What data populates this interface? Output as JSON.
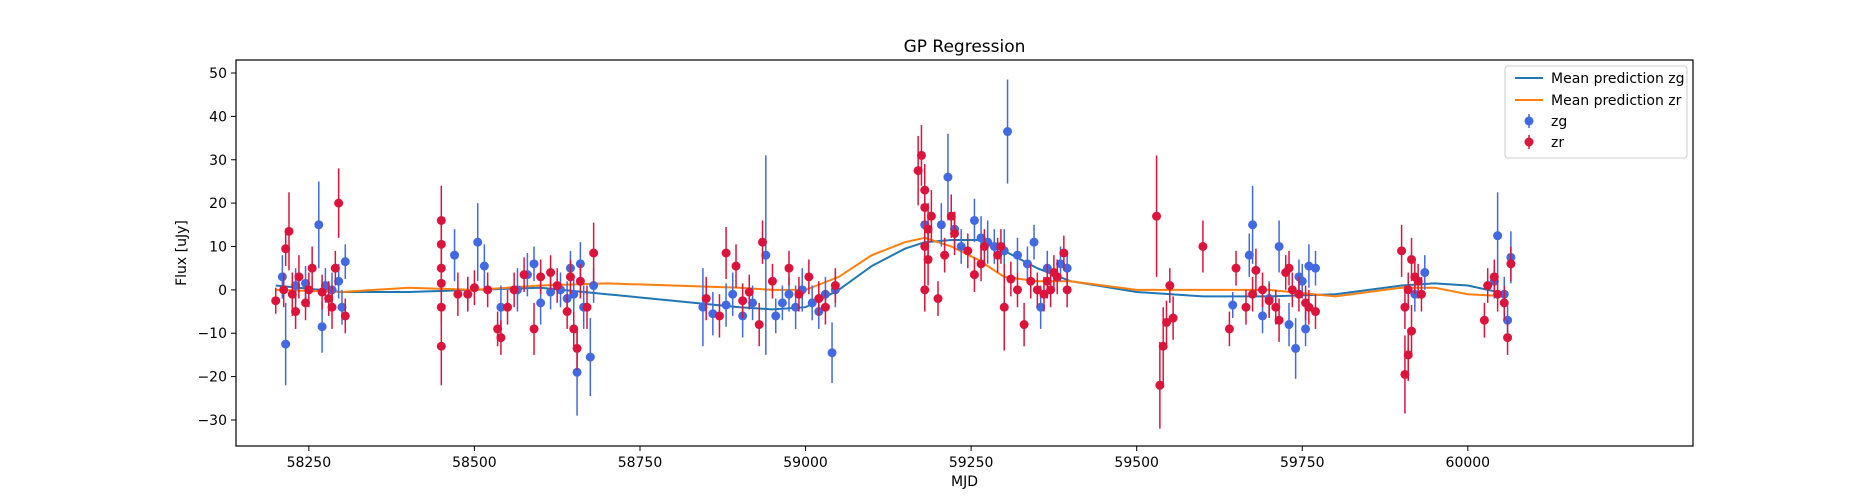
{
  "chart_data": {
    "type": "scatter",
    "title": "GP Regression",
    "xlabel": "MJD",
    "ylabel": "Flux [uJy]",
    "xlim": [
      58140,
      60340
    ],
    "ylim": [
      -36,
      53
    ],
    "xticks": [
      58250,
      58500,
      58750,
      59000,
      59250,
      59500,
      59750,
      60000
    ],
    "yticks": [
      -30,
      -20,
      -10,
      0,
      10,
      20,
      30,
      40,
      50
    ],
    "grid": false,
    "legend_position": "top-right",
    "legend": [
      {
        "label": "Mean prediction zg",
        "kind": "line",
        "color": "#1f77b4"
      },
      {
        "label": "Mean prediction zr",
        "kind": "line",
        "color": "#ff7f0e"
      },
      {
        "label": "zg",
        "kind": "errorbar",
        "color": "#4169e1"
      },
      {
        "label": "zr",
        "kind": "errorbar",
        "color": "#dc143c"
      }
    ],
    "mean_prediction": [
      {
        "name": "Mean prediction zg",
        "color": "#1f77b4",
        "x": [
          58200,
          58300,
          58400,
          58500,
          58600,
          58700,
          58800,
          58900,
          58950,
          59000,
          59050,
          59100,
          59150,
          59180,
          59220,
          59260,
          59300,
          59350,
          59400,
          59500,
          59600,
          59700,
          59800,
          59900,
          59950,
          60000,
          60060
        ],
        "y": [
          1.0,
          -0.5,
          -0.5,
          0.0,
          0.5,
          -1.0,
          -2.5,
          -4.0,
          -4.5,
          -4.0,
          0.0,
          5.5,
          9.5,
          11.0,
          11.5,
          11.5,
          9.0,
          5.0,
          2.0,
          -0.5,
          -1.5,
          -1.5,
          -1.0,
          1.0,
          1.5,
          1.0,
          -1.0
        ]
      },
      {
        "name": "Mean prediction zr",
        "color": "#ff7f0e",
        "x": [
          58200,
          58300,
          58400,
          58500,
          58600,
          58700,
          58800,
          58900,
          58950,
          59000,
          59050,
          59100,
          59150,
          59180,
          59220,
          59260,
          59300,
          59350,
          59400,
          59500,
          59600,
          59700,
          59800,
          59900,
          59950,
          60000,
          60060
        ],
        "y": [
          0.0,
          -0.5,
          0.5,
          0.0,
          1.0,
          1.5,
          1.0,
          0.5,
          0.0,
          0.0,
          3.0,
          8.0,
          11.0,
          12.0,
          10.0,
          7.0,
          3.0,
          2.0,
          2.0,
          0.0,
          0.0,
          0.0,
          -1.5,
          0.5,
          0.5,
          -1.0,
          -1.5
        ]
      }
    ],
    "series": [
      {
        "name": "zg",
        "color": "#4169e1",
        "points": [
          [
            58210,
            3,
            5
          ],
          [
            58215,
            -12.5,
            9.5
          ],
          [
            58230,
            1,
            4
          ],
          [
            58245,
            1.5,
            4
          ],
          [
            58265,
            15,
            10
          ],
          [
            58270,
            -8.5,
            6
          ],
          [
            58275,
            1,
            4
          ],
          [
            58285,
            0,
            4
          ],
          [
            58295,
            2,
            4
          ],
          [
            58300,
            -4,
            4
          ],
          [
            58305,
            6.5,
            4
          ],
          [
            58470,
            8,
            6
          ],
          [
            58490,
            -1,
            4
          ],
          [
            58505,
            11,
            9
          ],
          [
            58515,
            5.5,
            5
          ],
          [
            58540,
            -4,
            5
          ],
          [
            58565,
            0,
            5
          ],
          [
            58580,
            3.5,
            5
          ],
          [
            58590,
            6,
            4
          ],
          [
            58600,
            -3,
            5
          ],
          [
            58615,
            -0.5,
            4
          ],
          [
            58630,
            0,
            4
          ],
          [
            58645,
            5,
            4
          ],
          [
            58655,
            -19,
            10
          ],
          [
            58660,
            6,
            5
          ],
          [
            58665,
            -4,
            5
          ],
          [
            58675,
            -15.5,
            9
          ],
          [
            58680,
            1,
            4
          ],
          [
            58650,
            -1,
            4
          ],
          [
            58640,
            -2,
            4
          ],
          [
            58845,
            -4,
            9
          ],
          [
            58860,
            -5.5,
            5
          ],
          [
            58880,
            -3.5,
            5
          ],
          [
            58890,
            -1,
            5
          ],
          [
            58905,
            -6,
            5
          ],
          [
            58920,
            -3,
            4
          ],
          [
            58940,
            8,
            23
          ],
          [
            58955,
            -6,
            4
          ],
          [
            58965,
            -3,
            4
          ],
          [
            58975,
            -1,
            4
          ],
          [
            58985,
            -4,
            5
          ],
          [
            58995,
            0,
            5
          ],
          [
            59010,
            -3,
            4
          ],
          [
            59020,
            -5,
            4
          ],
          [
            59030,
            -1,
            4
          ],
          [
            59040,
            -14.5,
            7
          ],
          [
            59045,
            0,
            4
          ],
          [
            59180,
            15,
            4
          ],
          [
            59205,
            15,
            5
          ],
          [
            59215,
            26,
            10
          ],
          [
            59225,
            14,
            4
          ],
          [
            59235,
            10,
            4
          ],
          [
            59255,
            16,
            5
          ],
          [
            59265,
            12,
            5
          ],
          [
            59275,
            11,
            5
          ],
          [
            59285,
            10,
            4
          ],
          [
            59300,
            9,
            5
          ],
          [
            59305,
            36.5,
            12
          ],
          [
            59320,
            8,
            4
          ],
          [
            59335,
            6,
            4
          ],
          [
            59345,
            11,
            4
          ],
          [
            59355,
            -4,
            5
          ],
          [
            59365,
            5,
            4
          ],
          [
            59385,
            6,
            4
          ],
          [
            59395,
            5,
            4
          ],
          [
            59645,
            -3.5,
            3
          ],
          [
            59670,
            8,
            5
          ],
          [
            59675,
            15,
            9
          ],
          [
            59690,
            -6,
            4
          ],
          [
            59700,
            -2,
            4
          ],
          [
            59715,
            10,
            6
          ],
          [
            59730,
            -8,
            5
          ],
          [
            59740,
            -13.5,
            7
          ],
          [
            59755,
            -9,
            4
          ],
          [
            59760,
            5.5,
            5
          ],
          [
            59750,
            2,
            4
          ],
          [
            59770,
            5,
            4
          ],
          [
            59745,
            3,
            4
          ],
          [
            59920,
            -1,
            4
          ],
          [
            59935,
            4,
            4
          ],
          [
            60045,
            12.5,
            10
          ],
          [
            60060,
            -7,
            4
          ],
          [
            60065,
            7.5,
            6
          ],
          [
            60040,
            2,
            4
          ],
          [
            60055,
            -1,
            4
          ]
        ]
      },
      {
        "name": "zr",
        "color": "#dc143c",
        "points": [
          [
            58200,
            -2.5,
            3
          ],
          [
            58215,
            9.5,
            4
          ],
          [
            58220,
            13.5,
            9
          ],
          [
            58225,
            -1,
            5
          ],
          [
            58235,
            3,
            5
          ],
          [
            58245,
            -3,
            4
          ],
          [
            58255,
            5,
            5
          ],
          [
            58270,
            -0.5,
            4
          ],
          [
            58280,
            -2,
            4
          ],
          [
            58285,
            -4,
            5
          ],
          [
            58295,
            20,
            8
          ],
          [
            58305,
            -6,
            4
          ],
          [
            58212,
            0,
            4
          ],
          [
            58230,
            -5,
            4
          ],
          [
            58250,
            0,
            4
          ],
          [
            58290,
            5,
            4
          ],
          [
            58450,
            16,
            8
          ],
          [
            58450,
            10.5,
            5
          ],
          [
            58450,
            5,
            5
          ],
          [
            58450,
            1.5,
            5
          ],
          [
            58450,
            -13,
            9
          ],
          [
            58450,
            -4,
            4
          ],
          [
            58475,
            -1,
            5
          ],
          [
            58490,
            -1,
            4
          ],
          [
            58500,
            0.5,
            4
          ],
          [
            58520,
            0,
            4
          ],
          [
            58535,
            -9,
            4
          ],
          [
            58540,
            -11,
            4
          ],
          [
            58550,
            -4,
            4
          ],
          [
            58560,
            0,
            4
          ],
          [
            58575,
            3.5,
            4
          ],
          [
            58590,
            -9,
            6
          ],
          [
            58600,
            3,
            4
          ],
          [
            58615,
            4,
            4
          ],
          [
            58625,
            1,
            4
          ],
          [
            58640,
            -5,
            4
          ],
          [
            58650,
            -9,
            4
          ],
          [
            58655,
            -13.5,
            5
          ],
          [
            58660,
            2,
            4
          ],
          [
            58670,
            -4,
            5
          ],
          [
            58680,
            8.5,
            7
          ],
          [
            58645,
            3,
            4
          ],
          [
            58850,
            -2,
            5
          ],
          [
            58880,
            8.5,
            6
          ],
          [
            58895,
            5.5,
            5
          ],
          [
            58905,
            -2.5,
            4
          ],
          [
            58915,
            -0.5,
            4
          ],
          [
            58930,
            -8,
            5
          ],
          [
            58935,
            11,
            5
          ],
          [
            58950,
            2,
            4
          ],
          [
            58975,
            5,
            4
          ],
          [
            58990,
            -1,
            4
          ],
          [
            59005,
            3,
            4
          ],
          [
            59020,
            -2,
            4
          ],
          [
            59030,
            -4,
            4
          ],
          [
            59045,
            1,
            4
          ],
          [
            58870,
            -6,
            5
          ],
          [
            59170,
            27.5,
            8
          ],
          [
            59175,
            31,
            7
          ],
          [
            59180,
            23,
            6
          ],
          [
            59180,
            19,
            6
          ],
          [
            59185,
            14,
            6
          ],
          [
            59180,
            10,
            6
          ],
          [
            59185,
            7,
            6
          ],
          [
            59180,
            0,
            5
          ],
          [
            59190,
            17,
            6
          ],
          [
            59200,
            -2,
            4
          ],
          [
            59210,
            8,
            4
          ],
          [
            59220,
            17,
            5
          ],
          [
            59225,
            13,
            5
          ],
          [
            59245,
            9,
            4
          ],
          [
            59255,
            3.5,
            4
          ],
          [
            59265,
            6,
            4
          ],
          [
            59270,
            10,
            4
          ],
          [
            59290,
            8,
            4
          ],
          [
            59295,
            10,
            4
          ],
          [
            59300,
            -4,
            10
          ],
          [
            59310,
            2.5,
            4
          ],
          [
            59320,
            0,
            4
          ],
          [
            59330,
            -8,
            5
          ],
          [
            59340,
            2,
            4
          ],
          [
            59350,
            0,
            4
          ],
          [
            59360,
            -1,
            4
          ],
          [
            59370,
            0,
            4
          ],
          [
            59380,
            3,
            4
          ],
          [
            59390,
            8.5,
            4
          ],
          [
            59395,
            0,
            4
          ],
          [
            59375,
            4,
            4
          ],
          [
            59365,
            2,
            4
          ],
          [
            59530,
            17,
            14
          ],
          [
            59535,
            -22,
            10
          ],
          [
            59540,
            -13,
            9
          ],
          [
            59545,
            -7.5,
            5
          ],
          [
            59550,
            1,
            4
          ],
          [
            59555,
            -6.5,
            5
          ],
          [
            59600,
            10,
            6
          ],
          [
            59640,
            -9,
            4
          ],
          [
            59650,
            5,
            4
          ],
          [
            59665,
            -4,
            4
          ],
          [
            59680,
            4.5,
            5
          ],
          [
            59690,
            0,
            4
          ],
          [
            59700,
            -2.5,
            4
          ],
          [
            59710,
            -4,
            4
          ],
          [
            59715,
            -7,
            5
          ],
          [
            59725,
            4,
            4
          ],
          [
            59735,
            0,
            4
          ],
          [
            59745,
            -1,
            4
          ],
          [
            59760,
            -4,
            4
          ],
          [
            59770,
            -5,
            4
          ],
          [
            59675,
            -1,
            4
          ],
          [
            59730,
            5,
            4
          ],
          [
            59755,
            -3,
            4
          ],
          [
            59900,
            9,
            6
          ],
          [
            59905,
            -19.5,
            9
          ],
          [
            59910,
            -15,
            6
          ],
          [
            59915,
            -9.5,
            6
          ],
          [
            59915,
            7,
            5
          ],
          [
            59920,
            3,
            4
          ],
          [
            59925,
            2,
            4
          ],
          [
            59905,
            -4,
            5
          ],
          [
            59910,
            0,
            4
          ],
          [
            59930,
            -1,
            4
          ],
          [
            60025,
            -7,
            4
          ],
          [
            60030,
            1,
            4
          ],
          [
            60040,
            3,
            4
          ],
          [
            60045,
            -1,
            4
          ],
          [
            60055,
            -3,
            4
          ],
          [
            60060,
            -11,
            4
          ],
          [
            60065,
            6,
            4
          ]
        ]
      }
    ]
  }
}
